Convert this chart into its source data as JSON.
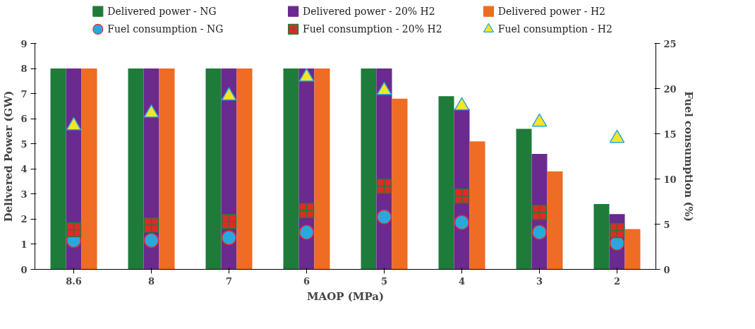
{
  "chart_data": {
    "type": "bar",
    "xlabel": "MAOP (MPa)",
    "ylabel": "Delivered Power (GW)",
    "y2label": "Fuel consumption (%)",
    "categories": [
      "8.6",
      "8",
      "7",
      "6",
      "5",
      "4",
      "3",
      "2"
    ],
    "series": [
      {
        "name": "Delivered power - NG",
        "color": "#1e7b3a",
        "values": [
          8,
          8,
          8,
          8,
          8,
          6.9,
          5.6,
          2.6
        ]
      },
      {
        "name": "Delivered power - 20% H2",
        "color": "#6a2a8f",
        "values": [
          8,
          8,
          8,
          8,
          8,
          6.4,
          4.6,
          2.2
        ]
      },
      {
        "name": "Delivered power - H2",
        "color": "#ee6c23",
        "values": [
          8,
          8,
          8,
          8,
          6.8,
          5.1,
          3.9,
          1.6
        ]
      },
      {
        "name": "Fuel consumption - NG",
        "type": "scatter",
        "axis": "y2",
        "marker": "circle",
        "color": "#29a8e0",
        "values": [
          3.2,
          3.2,
          3.5,
          4.1,
          5.8,
          5.2,
          4.1,
          2.9
        ]
      },
      {
        "name": "Fuel consumption - 20% H2",
        "type": "scatter",
        "axis": "y2",
        "marker": "cross",
        "color": "#e02a26",
        "values": [
          4.4,
          4.9,
          5.3,
          6.5,
          9.2,
          8.1,
          6.3,
          4.3
        ]
      },
      {
        "name": "Fuel consumption - H2",
        "type": "scatter",
        "axis": "y2",
        "marker": "triangle",
        "color": "#f5e529",
        "values": [
          15.9,
          17.3,
          19.2,
          21.3,
          19.8,
          18.1,
          16.3,
          14.5
        ]
      }
    ],
    "ylim": [
      0,
      9
    ],
    "yticks": [
      0,
      1,
      2,
      3,
      4,
      5,
      6,
      7,
      8,
      9
    ],
    "y2lim": [
      0,
      25
    ],
    "y2ticks": [
      0,
      5,
      10,
      15,
      20,
      25
    ],
    "grid": false,
    "legend": "top"
  }
}
